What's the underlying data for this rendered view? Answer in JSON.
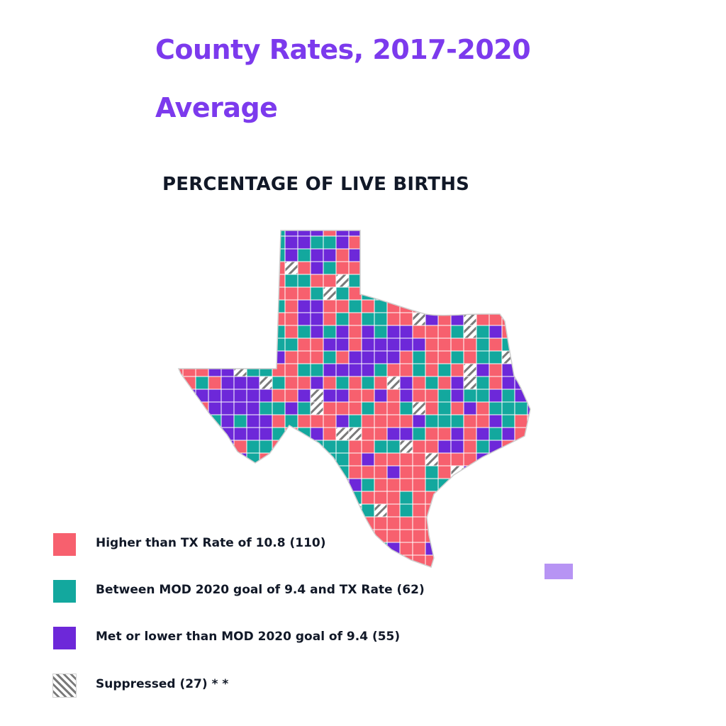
{
  "header": {
    "title_line1": "County Rates, 2017-2020",
    "title_line2": "Average",
    "subtitle": "PERCENTAGE OF LIVE BIRTHS"
  },
  "colors": {
    "higher": "#f7606e",
    "between": "#13a89e",
    "lower": "#6d28d9",
    "suppressed_stripe": "#7a7a7a",
    "county_border": "#ffffff",
    "title": "#7c3aed",
    "floating_swatch": "#b794f4"
  },
  "legend": [
    {
      "key": "higher",
      "label": "Higher than TX Rate of 10.8 (110)",
      "icon": "solid-swatch"
    },
    {
      "key": "between",
      "label": "Between MOD 2020 goal of 9.4 and TX Rate (62)",
      "icon": "solid-swatch"
    },
    {
      "key": "lower",
      "label": "Met or lower than MOD 2020 goal of 9.4 (55)",
      "icon": "solid-swatch"
    },
    {
      "key": "suppressed",
      "label": "Suppressed (27) * *",
      "icon": "hatched-swatch"
    }
  ]
}
